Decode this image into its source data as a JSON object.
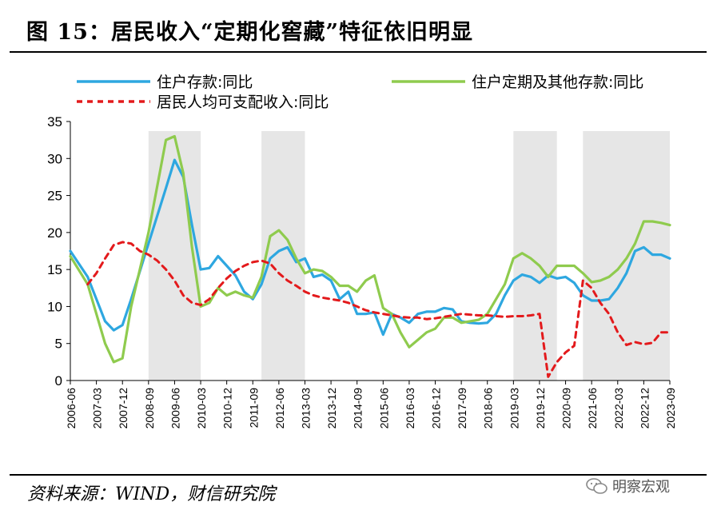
{
  "figure": {
    "title": "图 15：居民收入“定期化窖藏”特征依旧明显",
    "source": "资料来源：WIND，财信研究院",
    "watermark": "明察宏观"
  },
  "colors": {
    "deposit": "#2ea7e0",
    "time_deposit": "#8fcb4e",
    "income": "#e31a1c",
    "shade": "#e6e6e6",
    "axis": "#000000"
  },
  "icons": {
    "watermark_logo": "wechat-icon"
  },
  "chart_data": {
    "type": "line",
    "title": "",
    "xlabel": "",
    "ylabel": "",
    "ylim": [
      0,
      35
    ],
    "yticks": [
      0,
      5,
      10,
      15,
      20,
      25,
      30,
      35
    ],
    "grid": false,
    "legend_position": "top",
    "x_range": [
      "2006-06",
      "2023-09"
    ],
    "x_ticks": [
      "2006-06",
      "2007-03",
      "2007-12",
      "2008-09",
      "2009-06",
      "2010-03",
      "2010-12",
      "2011-09",
      "2012-06",
      "2013-03",
      "2013-12",
      "2014-09",
      "2015-06",
      "2016-03",
      "2016-12",
      "2017-09",
      "2018-06",
      "2019-03",
      "2019-12",
      "2020-09",
      "2021-06",
      "2022-03",
      "2022-12",
      "2023-09"
    ],
    "shaded_periods": [
      [
        "2008-09",
        "2010-03"
      ],
      [
        "2011-12",
        "2013-03"
      ],
      [
        "2019-03",
        "2020-06"
      ],
      [
        "2021-03",
        "2023-09"
      ]
    ],
    "series": [
      {
        "name": "住户存款:同比",
        "key": "deposit",
        "style": "solid",
        "points": [
          [
            "2006-06",
            17.5
          ],
          [
            "2006-12",
            14.0
          ],
          [
            "2007-03",
            11.0
          ],
          [
            "2007-06",
            8.0
          ],
          [
            "2007-09",
            6.8
          ],
          [
            "2007-12",
            7.5
          ],
          [
            "2008-03",
            11.0
          ],
          [
            "2008-09",
            18.5
          ],
          [
            "2009-03",
            26.0
          ],
          [
            "2009-06",
            29.8
          ],
          [
            "2009-09",
            27.5
          ],
          [
            "2009-12",
            21.0
          ],
          [
            "2010-03",
            15.0
          ],
          [
            "2010-06",
            15.2
          ],
          [
            "2010-09",
            16.8
          ],
          [
            "2010-12",
            15.5
          ],
          [
            "2011-03",
            14.2
          ],
          [
            "2011-06",
            12.0
          ],
          [
            "2011-09",
            11.0
          ],
          [
            "2011-12",
            13.0
          ],
          [
            "2012-03",
            16.5
          ],
          [
            "2012-06",
            17.5
          ],
          [
            "2012-09",
            18.0
          ],
          [
            "2012-12",
            16.0
          ],
          [
            "2013-03",
            16.5
          ],
          [
            "2013-06",
            14.0
          ],
          [
            "2013-09",
            14.3
          ],
          [
            "2013-12",
            13.5
          ],
          [
            "2014-03",
            11.0
          ],
          [
            "2014-06",
            12.0
          ],
          [
            "2014-09",
            9.0
          ],
          [
            "2014-12",
            9.0
          ],
          [
            "2015-03",
            9.2
          ],
          [
            "2015-06",
            6.2
          ],
          [
            "2015-09",
            9.0
          ],
          [
            "2015-12",
            8.5
          ],
          [
            "2016-03",
            7.8
          ],
          [
            "2016-06",
            9.0
          ],
          [
            "2016-09",
            9.3
          ],
          [
            "2016-12",
            9.3
          ],
          [
            "2017-03",
            9.8
          ],
          [
            "2017-06",
            9.6
          ],
          [
            "2017-09",
            8.0
          ],
          [
            "2017-12",
            7.8
          ],
          [
            "2018-03",
            7.7
          ],
          [
            "2018-06",
            7.8
          ],
          [
            "2018-09",
            9.0
          ],
          [
            "2018-12",
            11.5
          ],
          [
            "2019-03",
            13.5
          ],
          [
            "2019-06",
            14.3
          ],
          [
            "2019-09",
            14.0
          ],
          [
            "2019-12",
            13.2
          ],
          [
            "2020-03",
            14.2
          ],
          [
            "2020-06",
            13.8
          ],
          [
            "2020-09",
            14.0
          ],
          [
            "2020-12",
            13.2
          ],
          [
            "2021-03",
            11.5
          ],
          [
            "2021-06",
            10.8
          ],
          [
            "2021-09",
            10.8
          ],
          [
            "2021-12",
            11.0
          ],
          [
            "2022-03",
            12.5
          ],
          [
            "2022-06",
            14.5
          ],
          [
            "2022-09",
            17.5
          ],
          [
            "2022-12",
            18.0
          ],
          [
            "2023-03",
            17.0
          ],
          [
            "2023-06",
            17.0
          ],
          [
            "2023-09",
            16.5
          ]
        ]
      },
      {
        "name": "住户定期及其他存款:同比",
        "key": "time_deposit",
        "style": "solid",
        "points": [
          [
            "2006-06",
            16.8
          ],
          [
            "2006-12",
            13.0
          ],
          [
            "2007-03",
            9.0
          ],
          [
            "2007-06",
            5.0
          ],
          [
            "2007-09",
            2.5
          ],
          [
            "2007-12",
            3.0
          ],
          [
            "2008-03",
            10.0
          ],
          [
            "2008-09",
            20.0
          ],
          [
            "2009-03",
            32.5
          ],
          [
            "2009-06",
            33.0
          ],
          [
            "2009-09",
            28.0
          ],
          [
            "2009-12",
            18.0
          ],
          [
            "2010-03",
            10.0
          ],
          [
            "2010-06",
            10.5
          ],
          [
            "2010-09",
            12.5
          ],
          [
            "2010-12",
            11.5
          ],
          [
            "2011-03",
            12.0
          ],
          [
            "2011-06",
            11.5
          ],
          [
            "2011-09",
            11.2
          ],
          [
            "2011-12",
            14.0
          ],
          [
            "2012-03",
            19.5
          ],
          [
            "2012-06",
            20.3
          ],
          [
            "2012-09",
            19.0
          ],
          [
            "2012-12",
            16.5
          ],
          [
            "2013-03",
            14.5
          ],
          [
            "2013-06",
            15.0
          ],
          [
            "2013-09",
            14.8
          ],
          [
            "2013-12",
            14.0
          ],
          [
            "2014-03",
            12.8
          ],
          [
            "2014-06",
            12.8
          ],
          [
            "2014-09",
            12.0
          ],
          [
            "2014-12",
            13.5
          ],
          [
            "2015-03",
            14.2
          ],
          [
            "2015-06",
            9.8
          ],
          [
            "2015-09",
            9.0
          ],
          [
            "2015-12",
            6.5
          ],
          [
            "2016-03",
            4.5
          ],
          [
            "2016-06",
            5.5
          ],
          [
            "2016-09",
            6.5
          ],
          [
            "2016-12",
            7.0
          ],
          [
            "2017-03",
            8.5
          ],
          [
            "2017-06",
            8.5
          ],
          [
            "2017-09",
            7.8
          ],
          [
            "2017-12",
            8.0
          ],
          [
            "2018-03",
            8.2
          ],
          [
            "2018-06",
            9.0
          ],
          [
            "2018-09",
            11.0
          ],
          [
            "2018-12",
            13.0
          ],
          [
            "2019-03",
            16.5
          ],
          [
            "2019-06",
            17.2
          ],
          [
            "2019-09",
            16.5
          ],
          [
            "2019-12",
            15.5
          ],
          [
            "2020-03",
            14.0
          ],
          [
            "2020-06",
            15.5
          ],
          [
            "2020-09",
            15.5
          ],
          [
            "2020-12",
            15.5
          ],
          [
            "2021-03",
            14.5
          ],
          [
            "2021-06",
            13.3
          ],
          [
            "2021-09",
            13.5
          ],
          [
            "2021-12",
            14.0
          ],
          [
            "2022-03",
            15.0
          ],
          [
            "2022-06",
            16.5
          ],
          [
            "2022-09",
            18.5
          ],
          [
            "2022-12",
            21.5
          ],
          [
            "2023-03",
            21.5
          ],
          [
            "2023-06",
            21.3
          ],
          [
            "2023-09",
            21.0
          ]
        ]
      },
      {
        "name": "居民人均可支配收入:同比",
        "key": "income",
        "style": "dashed",
        "points": [
          [
            "2006-12",
            13.0
          ],
          [
            "2007-03",
            14.5
          ],
          [
            "2007-06",
            16.5
          ],
          [
            "2007-09",
            18.3
          ],
          [
            "2007-12",
            18.7
          ],
          [
            "2008-03",
            18.5
          ],
          [
            "2008-06",
            17.5
          ],
          [
            "2008-09",
            17.0
          ],
          [
            "2008-12",
            16.2
          ],
          [
            "2009-03",
            15.0
          ],
          [
            "2009-06",
            13.5
          ],
          [
            "2009-09",
            11.5
          ],
          [
            "2009-12",
            10.5
          ],
          [
            "2010-03",
            10.2
          ],
          [
            "2010-06",
            11.0
          ],
          [
            "2010-09",
            12.5
          ],
          [
            "2010-12",
            13.8
          ],
          [
            "2011-03",
            14.8
          ],
          [
            "2011-06",
            15.5
          ],
          [
            "2011-09",
            16.0
          ],
          [
            "2011-12",
            16.2
          ],
          [
            "2012-03",
            15.8
          ],
          [
            "2012-06",
            14.5
          ],
          [
            "2012-09",
            13.5
          ],
          [
            "2012-12",
            12.8
          ],
          [
            "2013-03",
            12.0
          ],
          [
            "2013-06",
            11.5
          ],
          [
            "2013-09",
            11.2
          ],
          [
            "2013-12",
            11.0
          ],
          [
            "2014-03",
            10.8
          ],
          [
            "2014-06",
            10.5
          ],
          [
            "2014-09",
            10.0
          ],
          [
            "2014-12",
            9.5
          ],
          [
            "2015-03",
            9.2
          ],
          [
            "2015-06",
            9.0
          ],
          [
            "2015-09",
            8.8
          ],
          [
            "2015-12",
            8.6
          ],
          [
            "2016-03",
            8.5
          ],
          [
            "2016-06",
            8.5
          ],
          [
            "2016-09",
            8.3
          ],
          [
            "2016-12",
            8.4
          ],
          [
            "2017-03",
            8.6
          ],
          [
            "2017-06",
            8.8
          ],
          [
            "2017-09",
            9.0
          ],
          [
            "2017-12",
            8.9
          ],
          [
            "2018-03",
            8.8
          ],
          [
            "2018-06",
            8.8
          ],
          [
            "2018-09",
            8.7
          ],
          [
            "2018-12",
            8.6
          ],
          [
            "2019-03",
            8.7
          ],
          [
            "2019-06",
            8.7
          ],
          [
            "2019-09",
            8.8
          ],
          [
            "2019-12",
            9.0
          ],
          [
            "2020-03",
            0.5
          ],
          [
            "2020-06",
            2.5
          ],
          [
            "2020-09",
            3.8
          ],
          [
            "2020-12",
            4.7
          ],
          [
            "2021-03",
            13.5
          ],
          [
            "2021-06",
            12.5
          ],
          [
            "2021-09",
            10.5
          ],
          [
            "2021-12",
            9.0
          ],
          [
            "2022-03",
            6.5
          ],
          [
            "2022-06",
            4.8
          ],
          [
            "2022-09",
            5.2
          ],
          [
            "2022-12",
            4.9
          ],
          [
            "2023-03",
            5.1
          ],
          [
            "2023-06",
            6.5
          ],
          [
            "2023-09",
            6.5
          ]
        ]
      }
    ]
  }
}
